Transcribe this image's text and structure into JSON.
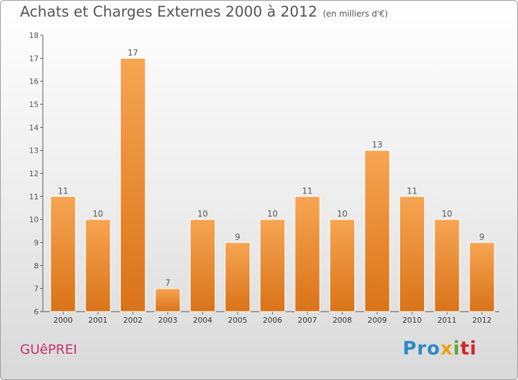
{
  "title": "Achats et Charges Externes 2000 à 2012",
  "subtitle": "(en milliers d'€)",
  "commune": "GUêPREI",
  "logo": {
    "p1": "Pro",
    "p2": "x",
    "p3": "i",
    "p4": "ti"
  },
  "colors": {
    "bar_top": "#f7a552",
    "bar_bottom": "#d97318",
    "axis": "#555555",
    "text": "#555555"
  },
  "chart_data": {
    "type": "bar",
    "categories": [
      "2000",
      "2001",
      "2002",
      "2003",
      "2004",
      "2005",
      "2006",
      "2007",
      "2008",
      "2009",
      "2010",
      "2011",
      "2012"
    ],
    "values": [
      11,
      10,
      17,
      7,
      10,
      9,
      10,
      11,
      10,
      13,
      11,
      10,
      9
    ],
    "title": "Achats et Charges Externes 2000 à 2012",
    "ylim": [
      6,
      18
    ],
    "yticks": [
      6,
      7,
      8,
      9,
      10,
      11,
      12,
      13,
      14,
      15,
      16,
      17,
      18
    ],
    "data_labels": true,
    "grid": false
  }
}
